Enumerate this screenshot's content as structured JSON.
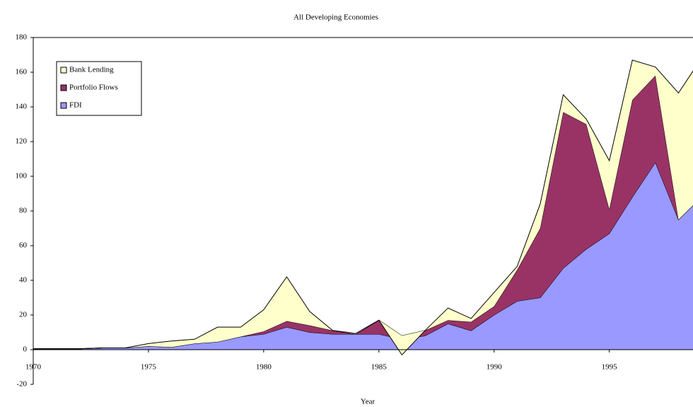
{
  "chart_data": {
    "type": "stacked_area",
    "title": "All Developing Economies",
    "x_label": "Year",
    "x": [
      1970,
      1971,
      1972,
      1973,
      1974,
      1975,
      1976,
      1977,
      1978,
      1979,
      1980,
      1981,
      1982,
      1983,
      1984,
      1985,
      1986,
      1987,
      1988,
      1989,
      1990,
      1991,
      1992,
      1993,
      1994,
      1995,
      1996,
      1997,
      1998,
      1999
    ],
    "series": [
      {
        "name": "FDI",
        "color": "#9999ff",
        "values": [
          0.5,
          0.5,
          0.5,
          1,
          1,
          2,
          1.5,
          3.5,
          4.5,
          7.5,
          9,
          13,
          10,
          9,
          9,
          9,
          6,
          8,
          15,
          11,
          20,
          28,
          30,
          47,
          58,
          67,
          88,
          108,
          75,
          88
        ]
      },
      {
        "name": "Portfolio Flows",
        "color": "#993366",
        "values": [
          0,
          0,
          0,
          0,
          0,
          0,
          0,
          0,
          0,
          0,
          1.5,
          3.5,
          4,
          2,
          0.5,
          8,
          2,
          3,
          2,
          5,
          5,
          18,
          40,
          90,
          72,
          14,
          56,
          50,
          0,
          0
        ]
      },
      {
        "name": "Bank Lending",
        "color": "#ffffcc",
        "values": [
          0,
          0,
          0,
          0,
          0,
          1.5,
          3.5,
          2.5,
          8.5,
          5.5,
          12.5,
          25.5,
          8,
          0,
          -0.5,
          0,
          -11,
          0,
          7,
          2,
          8,
          2,
          14,
          10,
          3,
          28,
          23,
          5,
          73,
          80
        ]
      }
    ],
    "xlim": [
      1970,
      1999
    ],
    "xticks": [
      1970,
      1975,
      1980,
      1985,
      1990,
      1995
    ],
    "ylim": [
      -20,
      180
    ],
    "yticks": [
      -20,
      0,
      20,
      40,
      60,
      80,
      100,
      120,
      140,
      160,
      180
    ],
    "legend": "upper left"
  }
}
